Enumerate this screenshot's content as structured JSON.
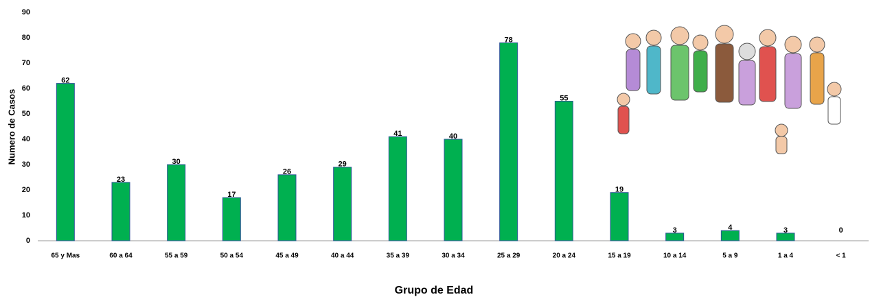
{
  "chart_data": {
    "type": "bar",
    "x_label": "Grupo de Edad",
    "y_label": "Numero de Casos",
    "categories": [
      "65 y Mas",
      "60 a 64",
      "55 a 59",
      "50 a 54",
      "45 a 49",
      "40 a 44",
      "35 a 39",
      "30 a 34",
      "25 a 29",
      "20 a 24",
      "15 a 19",
      "10 a 14",
      "5 a 9",
      "1 a 4",
      "< 1"
    ],
    "values": [
      62,
      23,
      30,
      17,
      26,
      29,
      41,
      40,
      78,
      55,
      19,
      3,
      4,
      3,
      0
    ],
    "color": "#00b050",
    "ylim": [
      0,
      90
    ],
    "yticks": [
      0,
      10,
      20,
      30,
      40,
      50,
      60,
      70,
      80,
      90
    ],
    "grid": false
  }
}
